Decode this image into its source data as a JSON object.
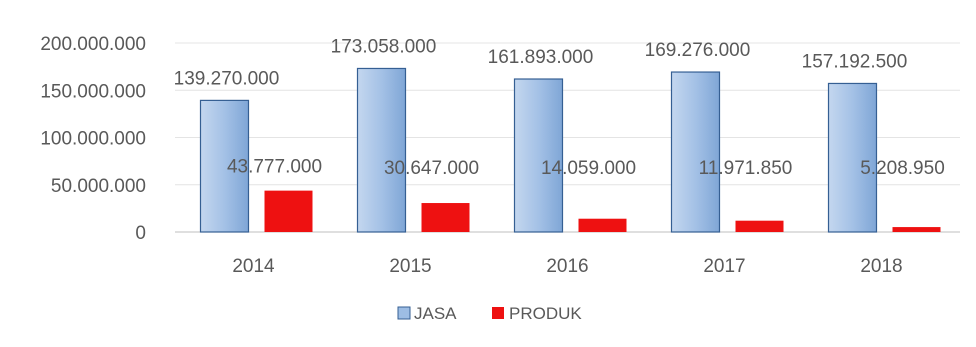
{
  "chart_data": {
    "type": "bar",
    "title": "",
    "xlabel": "",
    "ylabel": "",
    "categories": [
      "2014",
      "2015",
      "2016",
      "2017",
      "2018"
    ],
    "ylim": [
      0,
      200000000
    ],
    "yticks": [
      0,
      50000000,
      100000000,
      150000000,
      200000000
    ],
    "ytick_labels": [
      "0",
      "50.000.000",
      "100.000.000",
      "150.000.000",
      "200.000.000"
    ],
    "grid": true,
    "legend_position": "bottom-center",
    "series": [
      {
        "name": "JASA",
        "color": "#9dbde4",
        "values": [
          139270000,
          173058000,
          161893000,
          169276000,
          157192500
        ],
        "labels": [
          "139.270.000",
          "173.058.000",
          "161.893.000",
          "169.276.000",
          "157.192.500"
        ]
      },
      {
        "name": "PRODUK",
        "color": "#ee1111",
        "values": [
          43777000,
          30647000,
          14059000,
          11971850,
          5208950
        ],
        "labels": [
          "43.777.000",
          "30.647.000",
          "14.059.000",
          "11.971.850",
          "5.208.950"
        ]
      }
    ]
  }
}
